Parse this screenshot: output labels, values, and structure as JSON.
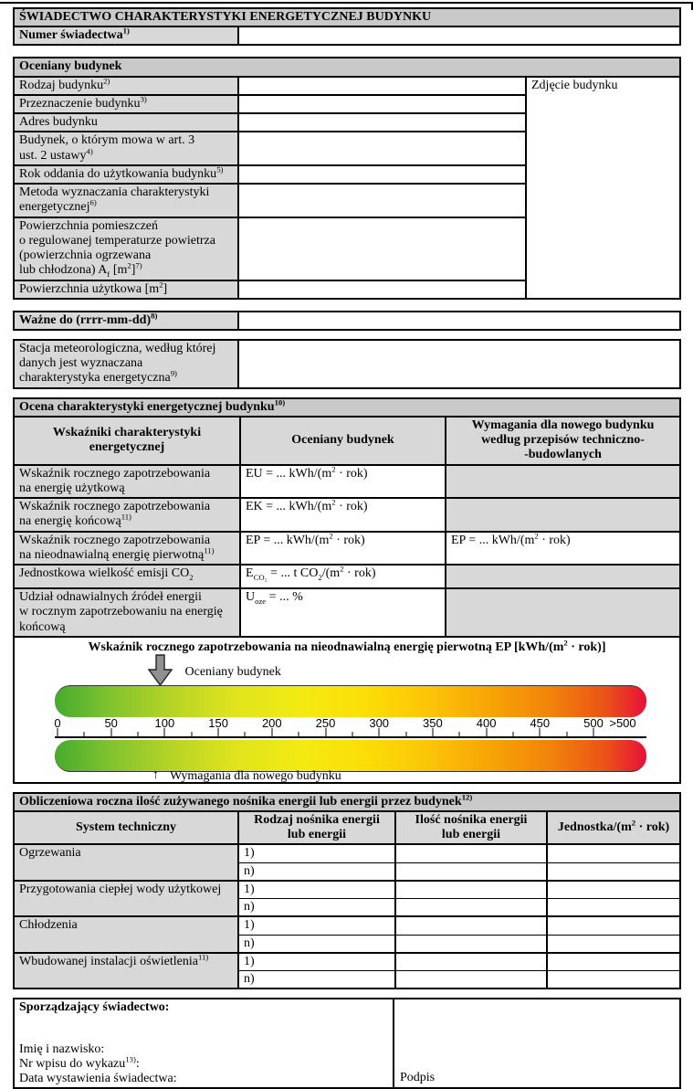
{
  "certificate": {
    "title": "ŚWIADECTWO CHARAKTERYSTYKI ENERGETYCZNEJ BUDYNKU",
    "number_label": "Numer świadectwa^{1)}"
  },
  "building": {
    "section_title": "Oceniany budynek",
    "photo_label": "Zdjęcie budynku",
    "rows": [
      {
        "label": "Rodzaj budynku^{2)}"
      },
      {
        "label": "Przeznaczenie budynku^{3)}"
      },
      {
        "label": "Adres budynku"
      },
      {
        "label": "Budynek, o którym mowa w art. 3\nust. 2 ustawy^{4)}"
      },
      {
        "label": "Rok oddania do użytkowania budynku^{5)}"
      },
      {
        "label": "Metoda wyznaczania charakterystyki\nenergetycznej^{6)}"
      },
      {
        "label": "Powierzchnia pomieszczeń\no regulowanej temperaturze powietrza\n(powierzchnia ogrzewana\nlub chłodzona) A_{f} [m^{2}]^{7)}"
      },
      {
        "label": "Powierzchnia użytkowa [m^{2}]"
      }
    ]
  },
  "validity": {
    "label": "Ważne do (rrrr-mm-dd)^{8)}"
  },
  "weather_station": {
    "label": "Stacja meteorologiczna, według której\ndanych jest wyznaczana\ncharakterystyka energetyczna^{9)}"
  },
  "assessment": {
    "section_title": "Ocena charakterystyki energetycznej budynku^{10)}",
    "col_headers": [
      "Wskaźniki charakterystyki\nenergetycznej",
      "Oceniany budynek",
      "Wymagania dla nowego budynku\nwedług przepisów techniczno-\n-budowlanych"
    ],
    "rows": [
      {
        "label": "Wskaźnik rocznego zapotrzebowania\nna energię użytkową",
        "value": "EU = ... kWh/(m^{2} · rok)",
        "requirement": ""
      },
      {
        "label": "Wskaźnik rocznego zapotrzebowania\nna energię końcową^{11)}",
        "value": "EK = ... kWh/(m^{2} · rok)",
        "requirement": ""
      },
      {
        "label": "Wskaźnik rocznego zapotrzebowania\nna nieodnawialną energię pierwotną^{11)}",
        "value": "EP = ... kWh/(m^{2} · rok)",
        "requirement": "EP = ... kWh/(m^{2} · rok)"
      },
      {
        "label": "Jednostkowa wielkość emisji CO_{2}",
        "value": "E_{CO₂} = ... t CO_{2}/(m^{2} · rok)",
        "requirement": ""
      },
      {
        "label": "Udział odnawialnych źródeł energii\nw rocznym zapotrzebowaniu na energię\nkońcową",
        "value": "U_{oze} = ... %",
        "requirement": ""
      }
    ]
  },
  "chart_data": {
    "type": "gauge",
    "title": "Wskaźnik rocznego zapotrzebowania na nieodnawialną energię pierwotną EP [kWh/(m^{2} · rok)]",
    "axis_range": [
      0,
      500
    ],
    "tick_labels": [
      0,
      50,
      100,
      150,
      200,
      250,
      300,
      350,
      400,
      450,
      500
    ],
    "overflow_label": ">500",
    "minor_tick_step": 25,
    "gradient_stops": [
      "#45ab2d 0%",
      "#7fc22f 9%",
      "#b8d426 20%",
      "#dfe31d 30%",
      "#f4ea12 42%",
      "#fbdf05 52%",
      "#fcc508 63%",
      "#f7a306 74%",
      "#f1820b 84%",
      "#eb5317 93%",
      "#e6103a 100%"
    ],
    "markers": [
      {
        "label": "Oceniany budynek",
        "position": "top",
        "value": 95,
        "glyph": "arrow-down"
      },
      {
        "label": "Wymagania dla nowego budynku",
        "position": "bottom",
        "value": 92,
        "glyph": "↑"
      }
    ]
  },
  "energy_carriers": {
    "section_title": "Obliczeniowa roczna ilość zużywanego nośnika energii lub energii przez budynek^{12)}",
    "col_headers": [
      "System techniczny",
      "Rodzaj nośnika energii\nlub energii",
      "Ilość nośnika energii\nlub energii",
      "Jednostka/(m^{2} · rok)"
    ],
    "systems": [
      {
        "name": "Ogrzewania",
        "rows": [
          "1)",
          "n)"
        ]
      },
      {
        "name": "Przygotowania ciepłej wody użytkowej",
        "rows": [
          "1)",
          "n)"
        ]
      },
      {
        "name": "Chłodzenia",
        "rows": [
          "1)",
          "n)"
        ]
      },
      {
        "name": "Wbudowanej instalacji oświetlenia^{11)}",
        "rows": [
          "1)",
          "n)"
        ]
      }
    ]
  },
  "issuer": {
    "title": "Sporządzający świadectwo:",
    "lines": [
      "Imię i nazwisko:",
      "Nr wpisu do wykazu^{13)}:",
      "Data wystawienia świadectwa:"
    ],
    "signature_label": "Podpis"
  },
  "colors": {
    "section_header_bg": "#c9c9c9",
    "label_cell_bg": "#d8d8d8",
    "border": "#000000",
    "marker_arrow_fill": "#909090"
  }
}
